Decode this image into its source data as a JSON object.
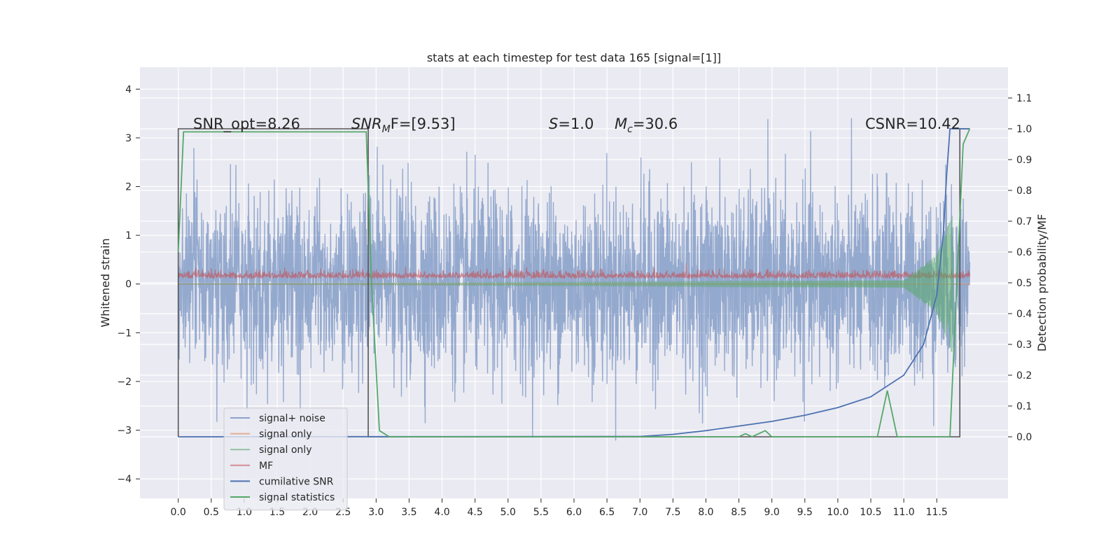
{
  "chart_data": {
    "type": "line",
    "title": "stats at each timestep for test data 165 [signal=[1]]",
    "ylabel": "Whitened strain",
    "ylabel_right": "Detection probability/MF",
    "xlim": [
      -0.58,
      12.58
    ],
    "ylim": [
      -4.4,
      4.45
    ],
    "ylim_right": [
      -0.2,
      1.2
    ],
    "x_ticks": [
      "0.0",
      "0.5",
      "1.0",
      "1.5",
      "2.0",
      "2.5",
      "3.0",
      "3.5",
      "4.0",
      "4.5",
      "5.0",
      "5.5",
      "6.0",
      "6.5",
      "7.0",
      "7.5",
      "8.0",
      "8.5",
      "9.0",
      "9.5",
      "10.0",
      "10.5",
      "11.0",
      "11.5"
    ],
    "y_ticks": [
      "4",
      "3",
      "2",
      "1",
      "0",
      "−1",
      "−2",
      "−3",
      "−4"
    ],
    "y_ticks_right": [
      "1.1",
      "1.0",
      "0.9",
      "0.8",
      "0.7",
      "0.6",
      "0.5",
      "0.4",
      "0.3",
      "0.2",
      "0.1",
      "0.0"
    ],
    "annotations": {
      "snr_opt": "SNR_opt=8.26",
      "snr_mf_a": "SNR",
      "snr_mf_sub": "M",
      "snr_mf_b": "F=[9.53]",
      "s_a": "S",
      "s_b": "=1.0",
      "mc_a": "M",
      "mc_sub": "c",
      "mc_b": "=30.6",
      "csnr": "CSNR=10.42"
    },
    "series": [
      {
        "name": "signal+ noise",
        "color": "#4c72b0",
        "x": [
          0.0,
          12.0
        ],
        "envelope_approx": [
          -2.6,
          2.4
        ]
      },
      {
        "name": "signal only",
        "color": "#dd8452",
        "x": [
          0.0,
          12.0
        ],
        "values_approx": [
          0.0,
          0.0
        ]
      },
      {
        "name": "signal only",
        "color": "#55a868",
        "x": [
          0.0,
          11.0,
          11.5,
          11.75
        ],
        "amplitude_approx": [
          0.0,
          0.05,
          0.4,
          1.0
        ]
      },
      {
        "name": "MF",
        "color": "#c44e52",
        "x": [
          0.0,
          12.0
        ],
        "envelope_approx": [
          0.0,
          0.3
        ]
      },
      {
        "name": "cumilative SNR",
        "color": "#4c72b0",
        "x": [
          0.0,
          7.0,
          7.5,
          8.0,
          8.5,
          9.0,
          9.5,
          10.0,
          10.5,
          11.0,
          11.3,
          11.5,
          11.6,
          11.65,
          11.7
        ],
        "values": [
          0.0,
          0.001,
          0.008,
          0.02,
          0.035,
          0.05,
          0.07,
          0.095,
          0.13,
          0.2,
          0.3,
          0.46,
          0.66,
          0.85,
          1.0
        ]
      },
      {
        "name": "signal statistics",
        "color": "#55a868",
        "x": [
          0.0,
          0.08,
          2.85,
          2.93,
          3.05,
          3.2,
          8.5,
          8.6,
          8.7,
          8.9,
          9.0,
          10.6,
          10.75,
          10.9,
          11.0,
          11.5,
          11.7,
          11.9,
          12.0
        ],
        "values": [
          0.6,
          0.99,
          0.99,
          0.5,
          0.02,
          0.0,
          0.0,
          0.01,
          0.0,
          0.02,
          0.0,
          0.0,
          0.15,
          0.0,
          0.0,
          0.0,
          0.0,
          0.95,
          1.0
        ]
      },
      {
        "name": "",
        "color": "#555555",
        "step": true,
        "x": [
          0.0,
          2.88,
          11.85
        ],
        "values": [
          1.0,
          0.0,
          1.0
        ]
      }
    ],
    "legend": {
      "position": "lower-left",
      "items": [
        {
          "label": "signal+ noise",
          "color": "#4c72b0",
          "alpha": 0.6
        },
        {
          "label": "signal only",
          "color": "#dd8452",
          "alpha": 0.6
        },
        {
          "label": "signal only",
          "color": "#55a868",
          "alpha": 0.6
        },
        {
          "label": "MF",
          "color": "#c44e52",
          "alpha": 0.6
        },
        {
          "label": "cumilative SNR",
          "color": "#4c72b0",
          "alpha": 1.0
        },
        {
          "label": "signal statistics",
          "color": "#55a868",
          "alpha": 1.0
        }
      ]
    },
    "grid": true,
    "background": "#eaeaf2"
  }
}
